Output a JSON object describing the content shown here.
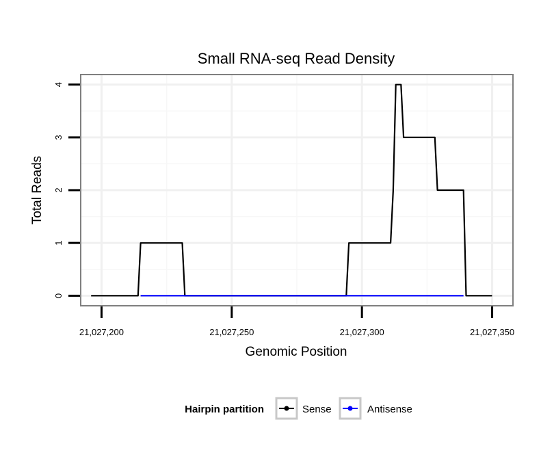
{
  "chart_data": {
    "type": "line",
    "title": "Small RNA-seq Read Density",
    "xlabel": "Genomic Position",
    "ylabel": "Total Reads",
    "xlim": [
      21027192,
      21027358
    ],
    "ylim": [
      -0.19,
      4.19
    ],
    "x_ticks": [
      21027200,
      21027250,
      21027300,
      21027350
    ],
    "x_tick_labels": [
      "21,027,200",
      "21,027,250",
      "21,027,300",
      "21,027,350"
    ],
    "y_ticks": [
      0,
      1,
      2,
      3,
      4
    ],
    "y_tick_labels": [
      "0",
      "1",
      "2",
      "3",
      "4"
    ],
    "grid": true,
    "series": [
      {
        "name": "Sense",
        "color": "#000000",
        "x": [
          21027196,
          21027214,
          21027215,
          21027231,
          21027232,
          21027294,
          21027295,
          21027311,
          21027312,
          21027313,
          21027315,
          21027316,
          21027328,
          21027329,
          21027339,
          21027340,
          21027350
        ],
        "y": [
          0,
          0,
          1,
          1,
          0,
          0,
          1,
          1,
          2,
          4,
          4,
          3,
          3,
          2,
          2,
          0,
          0
        ]
      },
      {
        "name": "Antisense",
        "color": "#0000ff",
        "x": [
          21027215,
          21027231,
          21027295,
          21027339
        ],
        "y": [
          0,
          0,
          0,
          0
        ]
      }
    ],
    "legend": {
      "title": "Hairpin partition",
      "position": "bottom",
      "entries": [
        "Sense",
        "Antisense"
      ]
    }
  }
}
